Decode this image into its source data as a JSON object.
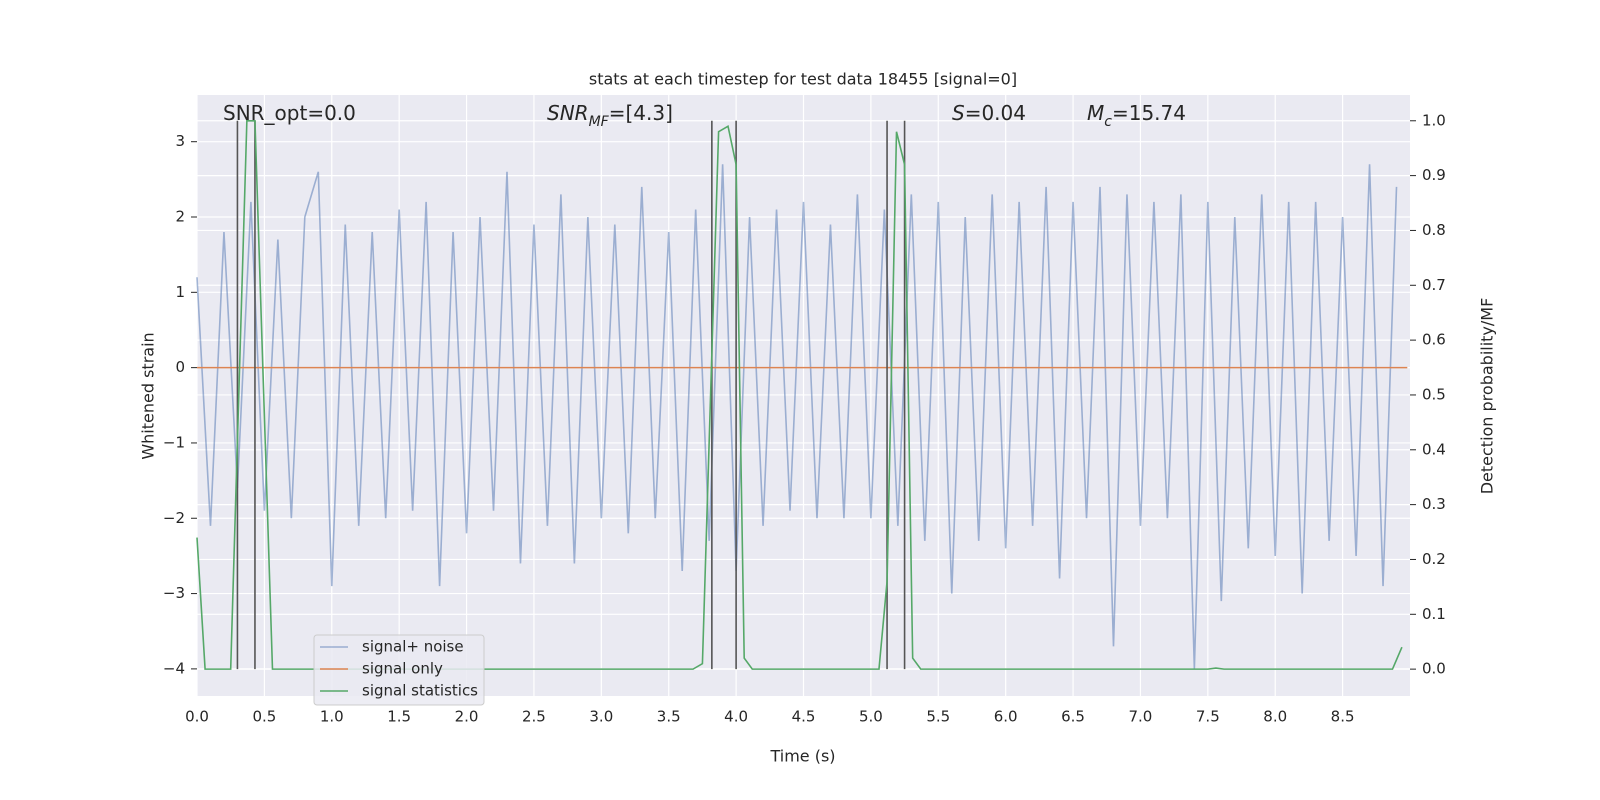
{
  "chart_data": {
    "type": "line",
    "title": "stats at each timestep for test data 18455 [signal=0]",
    "xlabel": "Time (s)",
    "ylabel": "Whitened strain",
    "y2label": "Detection probability/MF",
    "annotations": [
      {
        "text": "SNR_opt=0.0"
      },
      {
        "italic": "SNR",
        "sub": "MF",
        "text": "=[4.3]"
      },
      {
        "italic": "S",
        "text": "=0.04"
      },
      {
        "italic": "M",
        "sub": "c",
        "text": "=15.74"
      }
    ],
    "xlim": [
      0,
      9.0
    ],
    "ylim": [
      -4.36,
      3.62
    ],
    "y2lim": [
      -0.049,
      1.047
    ],
    "xticks": [
      {
        "value": 0,
        "label": "0.0"
      },
      0.5,
      {
        "value": 1,
        "label": "1.0"
      },
      1.5,
      {
        "value": 2,
        "label": "2.0"
      },
      2.5,
      {
        "value": 3,
        "label": "3.0"
      },
      3.5,
      {
        "value": 4,
        "label": "4.0"
      },
      4.5,
      {
        "value": 5,
        "label": "5.0"
      },
      5.5,
      {
        "value": 6,
        "label": "6.0"
      },
      6.5,
      {
        "value": 7,
        "label": "7.0"
      },
      7.5,
      {
        "value": 8,
        "label": "8.0"
      },
      8.5
    ],
    "yticks": [
      {
        "value": -4,
        "label": "−4"
      },
      {
        "value": -3,
        "label": "−3"
      },
      {
        "value": -2,
        "label": "−2"
      },
      {
        "value": -1,
        "label": "−1"
      },
      0,
      1,
      2,
      3
    ],
    "y2ticks": [
      {
        "value": 0,
        "label": "0.0"
      },
      0.1,
      0.2,
      0.3,
      0.4,
      0.5,
      0.6,
      0.7,
      0.8,
      0.9,
      {
        "value": 1,
        "label": "1.0"
      }
    ],
    "grid": true,
    "legend": "lower left",
    "series": [
      {
        "name": "signal+ noise",
        "color": "#4c72b0",
        "x": [
          0.0,
          0.1,
          0.2,
          0.3,
          0.4,
          0.5,
          0.6,
          0.7,
          0.8,
          0.9,
          1.0,
          1.1,
          1.2,
          1.3,
          1.4,
          1.5,
          1.6,
          1.7,
          1.8,
          1.9,
          2.0,
          2.1,
          2.2,
          2.3,
          2.4,
          2.5,
          2.6,
          2.7,
          2.8,
          2.9,
          3.0,
          3.1,
          3.2,
          3.3,
          3.4,
          3.5,
          3.6,
          3.7,
          3.8,
          3.9,
          4.0,
          4.1,
          4.2,
          4.3,
          4.4,
          4.5,
          4.6,
          4.7,
          4.8,
          4.9,
          5.0,
          5.1,
          5.2,
          5.3,
          5.4,
          5.5,
          5.6,
          5.7,
          5.8,
          5.9,
          6.0,
          6.1,
          6.2,
          6.3,
          6.4,
          6.5,
          6.6,
          6.7,
          6.8,
          6.9,
          7.0,
          7.1,
          7.2,
          7.3,
          7.4,
          7.5,
          7.6,
          7.7,
          7.8,
          7.9,
          8.0,
          8.1,
          8.2,
          8.3,
          8.4,
          8.5,
          8.6,
          8.7,
          8.8,
          8.9
        ],
        "values": [
          1.2,
          -2.1,
          1.8,
          -1.6,
          2.2,
          -1.9,
          1.7,
          -2.0,
          2.0,
          2.6,
          -2.9,
          1.9,
          -2.1,
          1.8,
          -2.0,
          2.1,
          -1.9,
          2.2,
          -2.9,
          1.8,
          -2.2,
          2.0,
          -1.9,
          2.6,
          -2.6,
          1.9,
          -2.1,
          2.3,
          -2.6,
          2.0,
          -2.0,
          1.9,
          -2.2,
          2.4,
          -2.0,
          1.8,
          -2.7,
          2.1,
          -2.3,
          2.7,
          -2.7,
          2.0,
          -2.1,
          2.1,
          -1.9,
          2.2,
          -2.0,
          1.9,
          -2.0,
          2.3,
          -2.0,
          2.1,
          -2.1,
          2.3,
          -2.3,
          2.2,
          -3.0,
          2.0,
          -2.3,
          2.3,
          -2.4,
          2.2,
          -2.1,
          2.4,
          -2.8,
          2.2,
          -2.0,
          2.4,
          -3.7,
          2.3,
          -2.1,
          2.2,
          -2.0,
          2.3,
          -4.0,
          2.2,
          -3.1,
          2.0,
          -2.4,
          2.3,
          -2.5,
          2.2,
          -3.0,
          2.2,
          -2.3,
          2.0,
          -2.5,
          2.7,
          -2.9,
          2.4
        ]
      },
      {
        "name": "signal only",
        "color": "#dd8452",
        "x": [
          0.0,
          8.98
        ],
        "values": [
          0,
          0
        ]
      },
      {
        "name": "signal statistics",
        "color": "#55a868",
        "axis": "y2",
        "x": [
          0.0,
          0.06,
          0.25,
          0.37,
          0.43,
          0.56,
          3.68,
          3.75,
          3.87,
          3.94,
          4.0,
          4.06,
          4.12,
          5.06,
          5.12,
          5.19,
          5.25,
          5.31,
          5.37,
          7.5,
          7.56,
          7.62,
          8.87,
          8.94
        ],
        "values": [
          0.24,
          0.0,
          0.0,
          1.0,
          1.0,
          0.0,
          0.0,
          0.01,
          0.98,
          0.99,
          0.92,
          0.02,
          0.0,
          0.0,
          0.16,
          0.98,
          0.92,
          0.02,
          0.0,
          0.0,
          0.002,
          0.0,
          0.0,
          0.04
        ]
      }
    ],
    "vlines": {
      "color": "#555555",
      "axis": "y2",
      "x": [
        0.3,
        0.43,
        3.82,
        4.0,
        5.12,
        5.25
      ],
      "ymin": 0,
      "ymax": 1
    }
  }
}
